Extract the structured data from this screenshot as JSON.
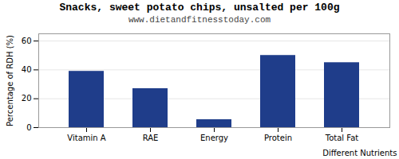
{
  "chart_data": {
    "type": "bar",
    "title": "Snacks, sweet potato chips, unsalted per 100g",
    "subtitle": "www.dietandfitnesstoday.com",
    "categories": [
      "Vitamin A",
      "RAE",
      "Energy",
      "Protein",
      "Total Fat"
    ],
    "values": [
      39,
      27,
      5.5,
      50,
      45
    ],
    "color": "#1f3d8a",
    "ylabel": "Percentage of RDH (%)",
    "xlabel": "Different Nutrients",
    "ylim": [
      0,
      65
    ],
    "yticks": [
      0,
      20,
      40,
      60
    ],
    "grid": true
  }
}
